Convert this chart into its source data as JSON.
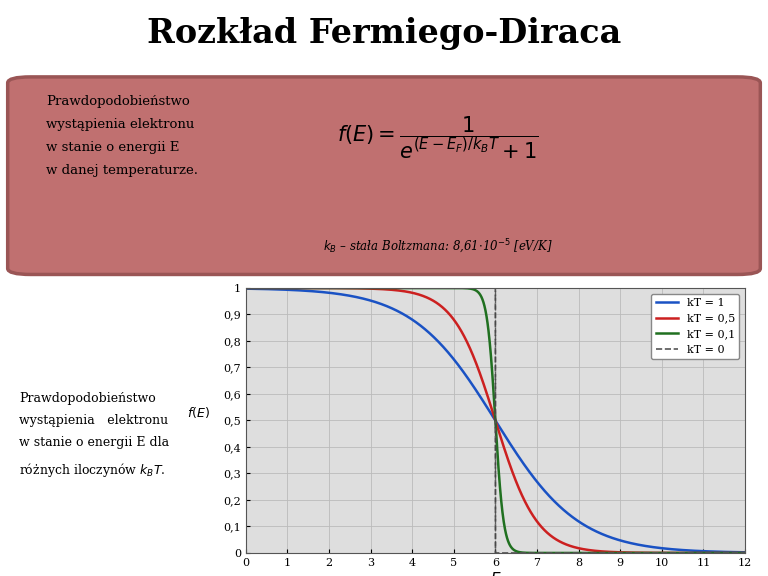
{
  "title": "Rozkład Fermiego-Diraca",
  "title_fontsize": 24,
  "title_fontweight": "bold",
  "background_color": "#ffffff",
  "box_color": "#c07070",
  "box_edge_color": "#9a5555",
  "box_text_left": "Prawdopodobieństwo\nwystąpienia elektronu\nw stanie o energii E\nw danej temperaturze.",
  "box_footnote": "$k_B$ – stała Boltzmana: 8,61•10$^{-5}$ [eV/K]",
  "bottom_text": "Prawdopodobieństwo\nwystąpienia elektronu\nw stanie o energii E dla\nróżnych iloczynów $k_B T$.",
  "E_min": 0,
  "E_max": 12,
  "E_F": 6,
  "kT_values": [
    1,
    0.5,
    0.1
  ],
  "kT_colors": [
    "#1a52c4",
    "#cc2020",
    "#207020"
  ],
  "kT_labels": [
    "kT = 1",
    "kT = 0,5",
    "kT = 0,1"
  ],
  "kT0_color": "#555555",
  "kT0_label": "kT = 0",
  "ylabel": "$f(E)$",
  "xlabel": "$E$",
  "yticks": [
    0,
    0.1,
    0.2,
    0.3,
    0.4,
    0.5,
    0.6,
    0.7,
    0.8,
    0.9,
    1
  ],
  "xticks": [
    0,
    1,
    2,
    3,
    4,
    5,
    6,
    7,
    8,
    9,
    10,
    11,
    12
  ],
  "ytick_labels": [
    "0",
    "0,1",
    "0,2",
    "0,3",
    "0,4",
    "0,5",
    "0,6",
    "0,7",
    "0,8",
    "0,9",
    "1"
  ],
  "grid_color": "#bbbbbb",
  "plot_bg_color": "#dedede"
}
